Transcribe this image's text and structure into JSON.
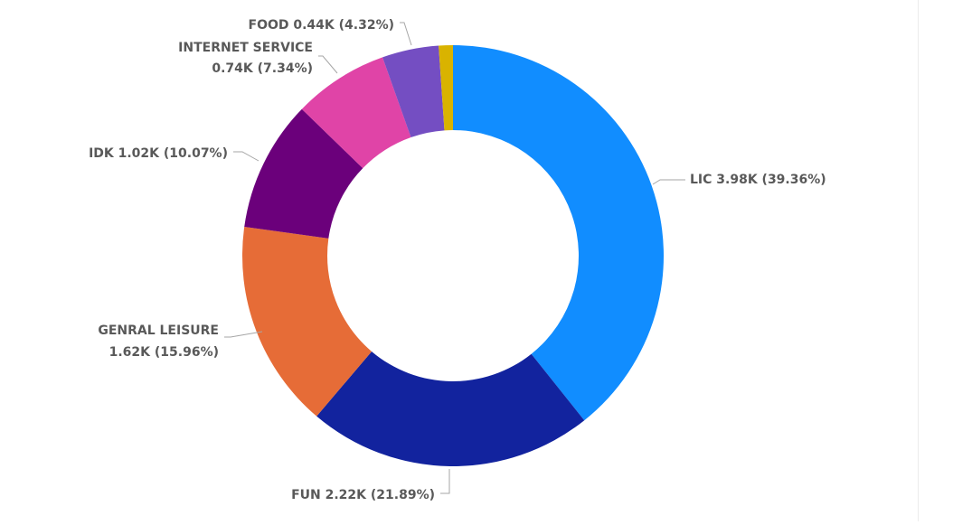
{
  "chart_data": {
    "type": "pie",
    "variant": "donut",
    "title": "",
    "legend": "none",
    "data_labels": "outside",
    "slices": [
      {
        "label": "LIC",
        "value": 3.98,
        "percent": 39.36,
        "color": "#118dff",
        "line1": "LIC 3.98K (39.36%)"
      },
      {
        "label": "FUN",
        "value": 2.22,
        "percent": 21.89,
        "color": "#12239e",
        "line1": "FUN 2.22K (21.89%)"
      },
      {
        "label": "GENRAL LEISURE",
        "value": 1.62,
        "percent": 15.96,
        "color": "#e66c37",
        "line1": "GENRAL LEISURE",
        "line2": "1.62K (15.96%)"
      },
      {
        "label": "IDK",
        "value": 1.02,
        "percent": 10.07,
        "color": "#6b007b",
        "line1": "IDK 1.02K (10.07%)"
      },
      {
        "label": "INTERNET SERVICE",
        "value": 0.74,
        "percent": 7.34,
        "color": "#e044a7",
        "line1": "INTERNET SERVICE",
        "line2": "0.74K (7.34%)"
      },
      {
        "label": "FOOD",
        "value": 0.44,
        "percent": 4.32,
        "color": "#744ec2",
        "line1": "FOOD 0.44K (4.32%)"
      },
      {
        "label": "",
        "value": 0.11,
        "percent": 1.06,
        "color": "#d9b300"
      }
    ]
  }
}
